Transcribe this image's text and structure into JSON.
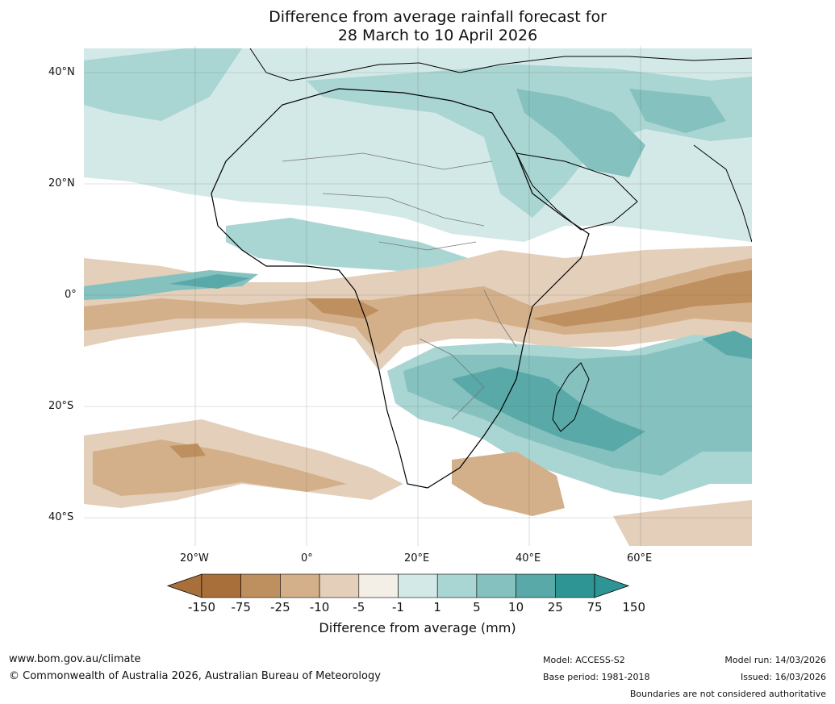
{
  "title": {
    "line1": "Difference from average rainfall forecast for",
    "line2": "28 March to 10 April 2026"
  },
  "axes": {
    "lat_labels": [
      "40°N",
      "20°N",
      "0°",
      "20°S",
      "40°S"
    ],
    "lon_labels": [
      "20°W",
      "0°",
      "20°E",
      "40°E",
      "60°E"
    ]
  },
  "colorbar": {
    "title": "Difference from average (mm)",
    "ticks": [
      "-150",
      "-75",
      "-25",
      "-10",
      "-5",
      "-1",
      "1",
      "5",
      "10",
      "25",
      "75",
      "150"
    ],
    "colors": [
      "#a86f3a",
      "#bf905f",
      "#d3b08a",
      "#e4cfba",
      "#f3eee6",
      "#ffffff",
      "#d3e9e7",
      "#a9d5d2",
      "#84c1bf",
      "#58a9a8",
      "#2e9594"
    ]
  },
  "footer": {
    "website": "www.bom.gov.au/climate",
    "copyright": "© Commonwealth of Australia 2026, Australian Bureau of Meteorology",
    "model": "Model: ACCESS-S2",
    "base_period": "Base period: 1981-2018",
    "model_run": "Model run: 14/03/2026",
    "issued": "Issued: 16/03/2026",
    "disclaimer": "Boundaries are not considered authoritative"
  }
}
